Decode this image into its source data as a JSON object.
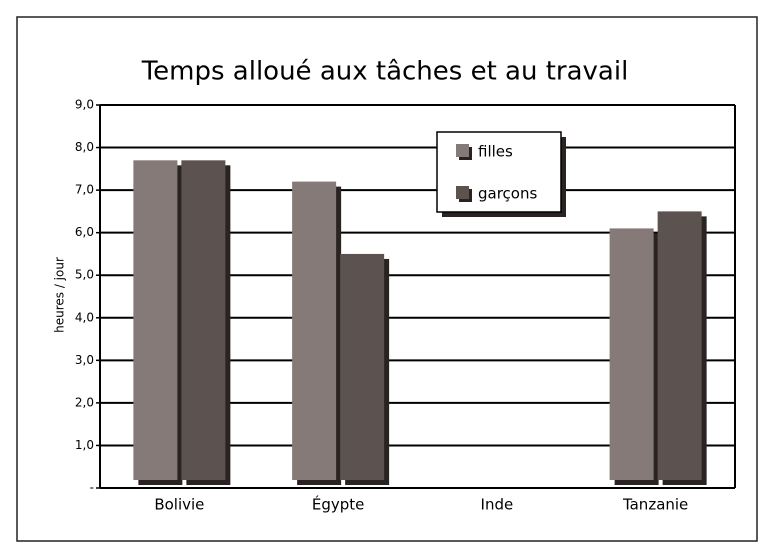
{
  "chart_data": {
    "type": "bar",
    "title": "Temps alloué aux tâches et au travail",
    "y_label": "heures / jour",
    "categories": [
      "Bolivie",
      "Égypte",
      "Inde",
      "Tanzanie"
    ],
    "series": [
      {
        "name": "filles",
        "color": "#857a77",
        "values": [
          7.7,
          7.2,
          null,
          6.1
        ]
      },
      {
        "name": "garçons",
        "color": "#5c524f",
        "values": [
          7.7,
          5.5,
          null,
          6.5
        ]
      }
    ],
    "ylim": [
      0,
      9
    ],
    "yticks": [
      {
        "value": 0,
        "label": "-"
      },
      {
        "value": 1,
        "label": "1,0"
      },
      {
        "value": 2,
        "label": "2,0"
      },
      {
        "value": 3,
        "label": "3,0"
      },
      {
        "value": 4,
        "label": "4,0"
      },
      {
        "value": 5,
        "label": "5,0"
      },
      {
        "value": 6,
        "label": "6,0"
      },
      {
        "value": 7,
        "label": "7,0"
      },
      {
        "value": 8,
        "label": "8,0"
      },
      {
        "value": 9,
        "label": "9,0"
      }
    ],
    "grid": true
  }
}
